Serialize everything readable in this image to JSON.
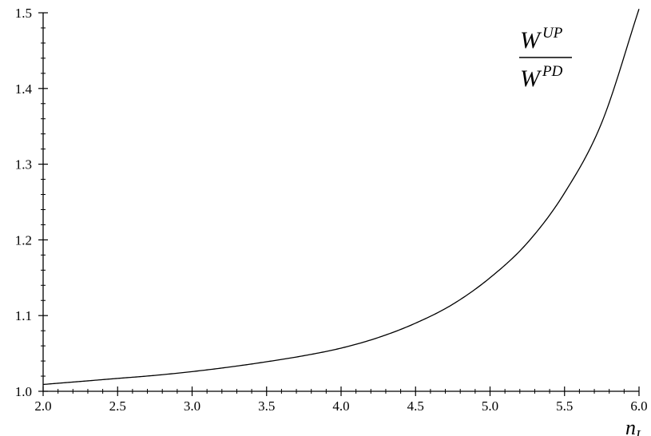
{
  "chart_data": {
    "type": "line",
    "title": "",
    "x": [
      2.0,
      2.25,
      2.5,
      2.75,
      3.0,
      3.25,
      3.5,
      3.75,
      4.0,
      4.25,
      4.5,
      4.75,
      5.0,
      5.25,
      5.5,
      5.75,
      6.0
    ],
    "series": [
      {
        "values": [
          1.009,
          1.013,
          1.017,
          1.021,
          1.026,
          1.032,
          1.039,
          1.047,
          1.057,
          1.071,
          1.09,
          1.115,
          1.15,
          1.196,
          1.262,
          1.355,
          1.505
        ]
      }
    ],
    "xlim": [
      2.0,
      6.0
    ],
    "ylim": [
      1.0,
      1.5
    ],
    "x_ticks": [
      "2.0",
      "2.5",
      "3.0",
      "3.5",
      "4.0",
      "4.5",
      "5.0",
      "5.5",
      "6.0"
    ],
    "y_ticks": [
      "1.0",
      "1.1",
      "1.2",
      "1.3",
      "1.4",
      "1.5"
    ],
    "xlabel": {
      "main": "n",
      "sub": "L"
    },
    "annotation": {
      "numerator": {
        "main": "W",
        "sup": "UP"
      },
      "denominator": {
        "main": "W",
        "sup": "PD"
      }
    },
    "grid": false,
    "line_color": "#000000"
  }
}
